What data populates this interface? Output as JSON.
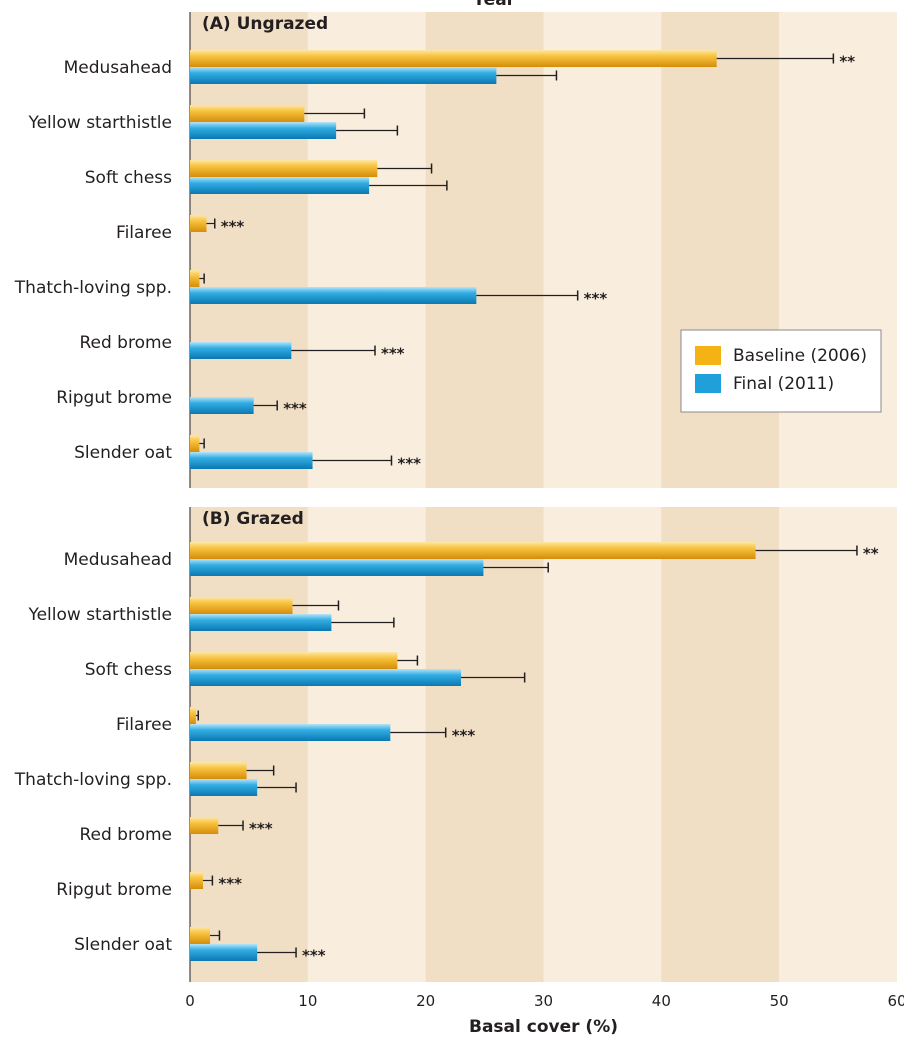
{
  "chart_data": {
    "type": "bar",
    "orientation": "horizontal",
    "top_title": "Year",
    "xlabel": "Basal cover (%)",
    "xlim": [
      0,
      60
    ],
    "xticks": [
      0,
      10,
      20,
      30,
      40,
      50,
      60
    ],
    "legend": {
      "position": "right",
      "entries": [
        {
          "name": "Baseline (2006)",
          "color": "#f5b215"
        },
        {
          "name": "Final (2011)",
          "color": "#1fa0da"
        }
      ]
    },
    "panels": [
      {
        "title": "(A) Ungrazed",
        "categories": [
          "Medusahead",
          "Yellow starthistle",
          "Soft chess",
          "Filaree",
          "Thatch-loving spp.",
          "Red brome",
          "Ripgut brome",
          "Slender oat"
        ],
        "significance": [
          "**",
          "",
          "",
          "***",
          "***",
          "***",
          "***",
          "***"
        ],
        "series": [
          {
            "name": "Baseline (2006)",
            "values": [
              44.7,
              9.7,
              15.9,
              1.4,
              0.8,
              0,
              0,
              0.8
            ],
            "errors": [
              9.9,
              5.1,
              4.6,
              0.7,
              0.4,
              0,
              0,
              0.4
            ]
          },
          {
            "name": "Final (2011)",
            "values": [
              26.0,
              12.4,
              15.2,
              0,
              24.3,
              8.6,
              5.4,
              10.4
            ],
            "errors": [
              5.1,
              5.2,
              6.6,
              0,
              8.6,
              7.1,
              2.0,
              6.7
            ]
          }
        ]
      },
      {
        "title": "(B) Grazed",
        "categories": [
          "Medusahead",
          "Yellow starthistle",
          "Soft chess",
          "Filaree",
          "Thatch-loving spp.",
          "Red brome",
          "Ripgut brome",
          "Slender oat"
        ],
        "significance": [
          "**",
          "",
          "",
          "***",
          "",
          "***",
          "***",
          "***"
        ],
        "series": [
          {
            "name": "Baseline (2006)",
            "values": [
              48.0,
              8.7,
              17.6,
              0.5,
              4.8,
              2.4,
              1.1,
              1.7
            ],
            "errors": [
              8.6,
              3.9,
              1.7,
              0.2,
              2.3,
              2.1,
              0.8,
              0.8
            ]
          },
          {
            "name": "Final (2011)",
            "values": [
              24.9,
              12.0,
              23.0,
              17.0,
              5.7,
              0,
              0,
              5.7
            ],
            "errors": [
              5.5,
              5.3,
              5.4,
              4.7,
              3.3,
              0,
              0,
              3.3
            ]
          }
        ]
      }
    ]
  }
}
